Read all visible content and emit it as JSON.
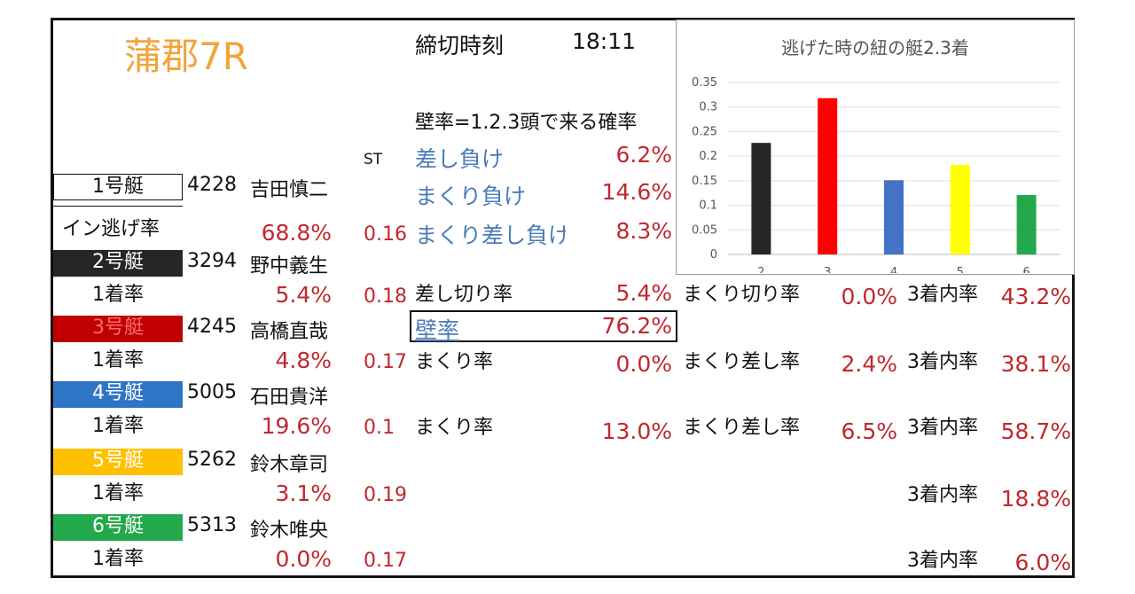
{
  "race_title": "蒲郡7R",
  "deadline_label": "締切時刻",
  "deadline_time": "18:11",
  "st_label": "ST",
  "wall_definition": "壁率=1.2.3頭で来る確率",
  "boat1": {
    "name": "1号艇",
    "id": "4228",
    "racer": "吉田慎二",
    "rate_label": "イン逃げ率",
    "rate": "68.8%",
    "st": "0.16",
    "color": "#ffffff"
  },
  "loss_stats": [
    {
      "label": "差し負け",
      "value": "6.2%"
    },
    {
      "label": "まくり負け",
      "value": "14.6%"
    },
    {
      "label": "まくり差し負け",
      "value": "8.3%"
    }
  ],
  "boats": [
    {
      "name": "2号艇",
      "id": "3294",
      "racer": "野中義生",
      "rate_label": "1着率",
      "rate": "5.4%",
      "st": "0.18",
      "color": "#262626",
      "text_color": "#ffffff"
    },
    {
      "name": "3号艇",
      "id": "4245",
      "racer": "高橋直哉",
      "rate_label": "1着率",
      "rate": "4.8%",
      "st": "0.17",
      "color": "#c00000",
      "text_color": "#ff6a6a"
    },
    {
      "name": "4号艇",
      "id": "5005",
      "racer": "石田貴洋",
      "rate_label": "1着率",
      "rate": "19.6%",
      "st": "0.1",
      "color": "#2e75c6",
      "text_color": "#ffffff"
    },
    {
      "name": "5号艇",
      "id": "5262",
      "racer": "鈴木章司",
      "rate_label": "1着率",
      "rate": "3.1%",
      "st": "0.19",
      "color": "#ffc000",
      "text_color": "#ffffff"
    },
    {
      "name": "6号艇",
      "id": "5313",
      "racer": "鈴木唯央",
      "rate_label": "1着率",
      "rate": "0.0%",
      "st": "0.17",
      "color": "#22a94b",
      "text_color": "#ffffff"
    }
  ],
  "boat2_stats": {
    "sashi_label": "差し切り率",
    "sashi": "5.4%",
    "makuri_label": "まくり切り率",
    "makuri": "0.0%",
    "top3_label": "3着内率",
    "top3": "43.2%"
  },
  "wall": {
    "label": "壁率",
    "value": "76.2%"
  },
  "boat3_stats": {
    "makuri_label": "まくり率",
    "makuri": "0.0%",
    "makurisashi_label": "まくり差し率",
    "makurisashi": "2.4%",
    "top3_label": "3着内率",
    "top3": "38.1%"
  },
  "boat4_stats": {
    "makuri_label": "まくり率",
    "makuri": "13.0%",
    "makurisashi_label": "まくり差し率",
    "makurisashi": "6.5%",
    "top3_label": "3着内率",
    "top3": "58.7%"
  },
  "boat5_stats": {
    "top3_label": "3着内率",
    "top3": "18.8%"
  },
  "boat6_stats": {
    "top3_label": "3着内率",
    "top3": "6.0%"
  },
  "chart_data": {
    "type": "bar",
    "title": "逃げた時の紐の艇2.3着",
    "categories": [
      "2",
      "3",
      "4",
      "5",
      "6"
    ],
    "values": [
      0.227,
      0.318,
      0.151,
      0.182,
      0.121
    ],
    "colors": [
      "#262626",
      "#ff0000",
      "#4472c4",
      "#ffff00",
      "#22a94b"
    ],
    "ylim": [
      0,
      0.35
    ],
    "yticks": [
      "0",
      "0.05",
      "0.1",
      "0.15",
      "0.2",
      "0.25",
      "0.3",
      "0.35"
    ],
    "grid": true
  }
}
